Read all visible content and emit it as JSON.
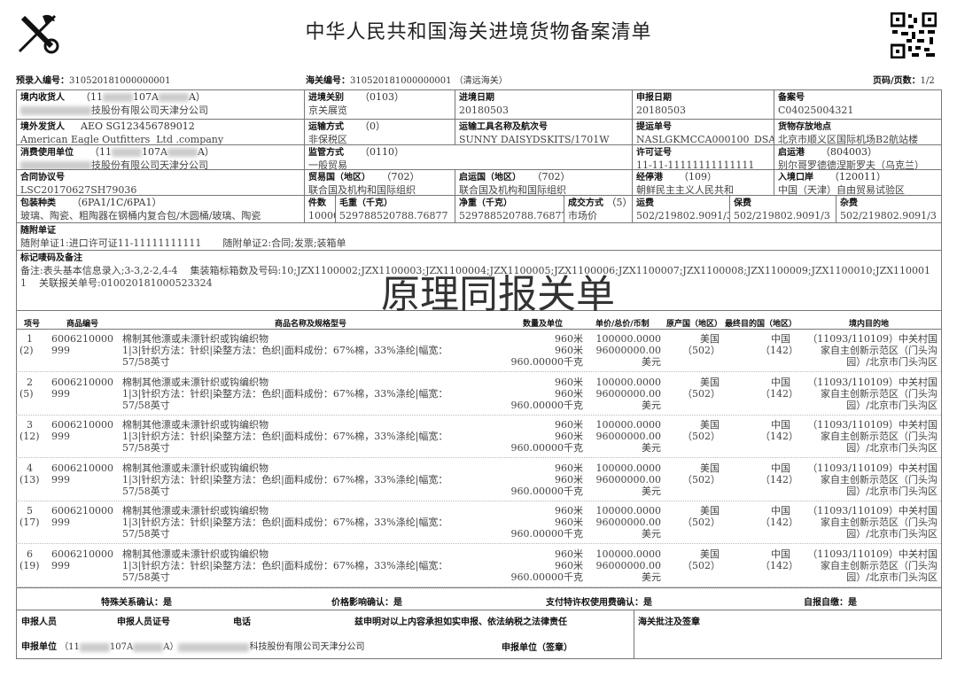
{
  "title": "中华人民共和国海关进境货物备案清单",
  "pre_entry": {
    "label": "预录入编号：",
    "value": "310520181000000001"
  },
  "customs_no": {
    "label": "海关编号：",
    "value": "310520181000000001",
    "office": "（清远海关）"
  },
  "page": {
    "label": "页码/页数：",
    "value": "1/2"
  },
  "watermark": "原理同报关单",
  "header": {
    "consignee": {
      "label": "境内收货人",
      "code_a": "（11",
      "code_b": "107A",
      "code_c": "A）",
      "name": "技股份有限公司天津分公司"
    },
    "port": {
      "label": "进境关别",
      "code": "（0103）",
      "value": "京关展览"
    },
    "entry_date": {
      "label": "进境日期",
      "value": "20180503"
    },
    "declare_date": {
      "label": "申报日期",
      "value": "20180503"
    },
    "record_no": {
      "label": "备案号",
      "value": "C04025004321"
    },
    "shipper": {
      "label": "境外发货人",
      "code": "AEO SG123456789012",
      "value": "American Eagle Outfitters  Ltd .company"
    },
    "transport": {
      "label": "运输方式",
      "code": "（0）",
      "value": "非保税区"
    },
    "vessel": {
      "label": "运输工具名称及航次号",
      "value": "SUNNY DAISYDSKITS/1701W"
    },
    "bl": {
      "label": "提运单号",
      "value": "NASLGKMCCA000100_DSADI"
    },
    "storage": {
      "label": "货物存放地点",
      "value": "北京市顺义区国际机场B2航站楼"
    },
    "consumer": {
      "label": "消费使用单位",
      "code_a": "（11",
      "code_b": "107A",
      "code_c": "A）",
      "name": "技股份有限公司天津分公司"
    },
    "supervision": {
      "label": "监管方式",
      "code": "（0110）",
      "value": "一般贸易"
    },
    "license": {
      "label": "许可证号",
      "value": "11-11-11111111111111"
    },
    "dep_port": {
      "label": "启运港",
      "code": "（804003）",
      "value": "别尔哥罗德德涅斯罗夫（乌克兰）"
    },
    "contract": {
      "label": "合同协议号",
      "value": "LSC20170627SH79036"
    },
    "trade_country": {
      "label": "贸易国（地区）",
      "code": "（702）",
      "value": "联合国及机构和国际组织"
    },
    "dep_country": {
      "label": "启运国（地区）",
      "code": "（702）",
      "value": "联合国及机构和国际组织"
    },
    "stop_port": {
      "label": "经停港",
      "code": "（109）",
      "value": "朝鲜民主主义人民共和"
    },
    "entry_port": {
      "label": "入境口岸",
      "code": "（120011）",
      "value": "中国（天津）自由贸易试验区"
    },
    "packing": {
      "label": "包装种类",
      "code": "（6PA1/1C/6PA1）",
      "value": "玻璃、陶瓷、粗陶器在钢桶内复合包/木圆桶/玻璃、陶瓷"
    },
    "pieces": {
      "label": "件数",
      "value": "10000"
    },
    "gross": {
      "label": "毛重（千克）",
      "value": "529788520788.76877"
    },
    "net": {
      "label": "净重（千克）",
      "value": "529788520788.76877"
    },
    "deal": {
      "label": "成交方式",
      "code": "（5）",
      "value": "市场价"
    },
    "freight": {
      "label": "运费",
      "value": "502/219802.9091/3"
    },
    "insurance": {
      "label": "保费",
      "value": "502/219802.9091/3"
    },
    "misc": {
      "label": "杂费",
      "value": "502/219802.9091/3"
    }
  },
  "docs": {
    "label": "随附单证",
    "doc1": "随附单证1:进口许可证11-11111111111",
    "doc2": "随附单证2:合同;发票;装箱单"
  },
  "marks": {
    "label": "标记唛码及备注",
    "line1": "备注:表头基本信息录入;3-3,2-2,4-4    集装箱标箱数及号码:10;JZX1100002;JZX1100003;JZX1100004;JZX1100005;JZX1100006;JZX1100007;JZX1100008;JZX1100009;JZX1100010;JZX110001",
    "line2": "1    关联报关单号:010020181000523324"
  },
  "columns": [
    "项号",
    "商品编号",
    "商品名称及规格型号",
    "数量及单位",
    "单价/总价/币制",
    "原产国（地区）",
    "最终目的国（地区）",
    "境内目的地"
  ],
  "items": [
    {
      "no": "1",
      "sub": "(2)"
    },
    {
      "no": "2",
      "sub": "(5)"
    },
    {
      "no": "3",
      "sub": "(12)"
    },
    {
      "no": "4",
      "sub": "(13)"
    },
    {
      "no": "5",
      "sub": "(17)"
    },
    {
      "no": "6",
      "sub": "(19)"
    }
  ],
  "item_common": {
    "hs": "6006210000",
    "hs2": "999",
    "name": "棉制其他漂或未漂针织或钩编织物",
    "spec": "1|3|针织方法：针织|染整方法：色织|面料成份：67%棉，33%涤纶|幅宽：",
    "spec2": "57/58英寸",
    "qty1": "960米",
    "qty2": "960米",
    "qty3": "960.00000千克",
    "price": "100000.0000",
    "total": "96000000.00",
    "currency": "美元",
    "origin": "美国",
    "origin_code": "（502）",
    "dest": "中国",
    "dest_code": "（142）",
    "domestic1": "（11093/110109）中关村国",
    "domestic2": "家自主创新示范区（门头沟",
    "domestic3": "园）/北京市门头沟区"
  },
  "confirm": {
    "special": "特殊关系确认：是",
    "price": "价格影响确认：是",
    "royalty": "支付特许权使用费确认：是",
    "self_pay": "自报自缴：是"
  },
  "footer": {
    "person": "申报人员",
    "person_id": "申报人员证号",
    "phone": "电话",
    "statement": "兹申明对以上内容承担如实申报、依法纳税之法律责任",
    "customs_sign": "海关批注及签章",
    "unit_label": "申报单位",
    "unit_code_a": "（11",
    "unit_code_b": "107A",
    "unit_code_c": "A）",
    "unit_name": "科技股份有限公司天津分公司",
    "unit_sign": "申报单位（签章）"
  }
}
